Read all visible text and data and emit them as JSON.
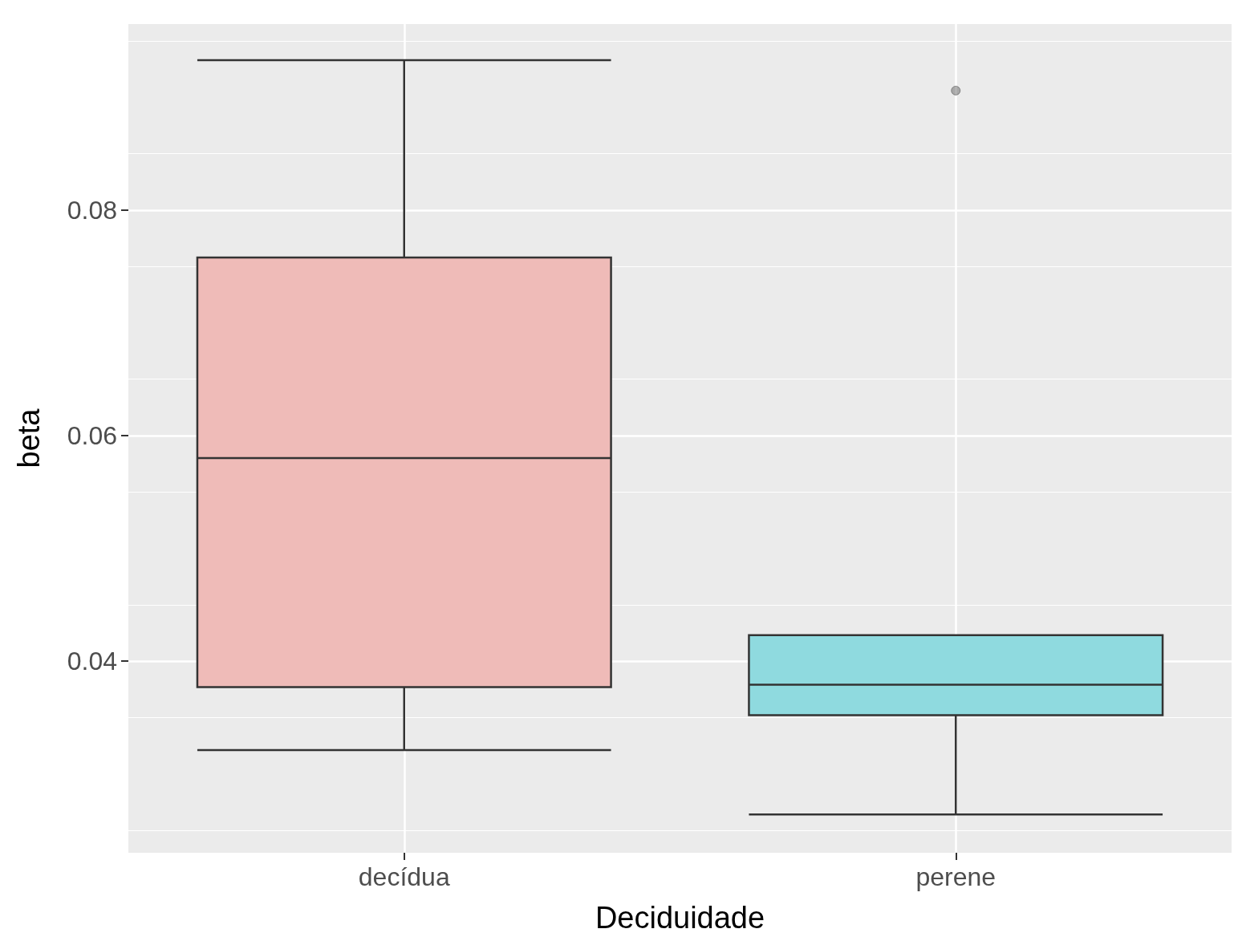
{
  "chart_data": {
    "type": "box",
    "xlabel": "Deciduidade",
    "ylabel": "beta",
    "categories": [
      "decídua",
      "perene"
    ],
    "colors": [
      "#efbbb8",
      "#8fdadf"
    ],
    "boxes": [
      {
        "low": 0.0321,
        "q1": 0.0377,
        "median": 0.058,
        "q3": 0.0758,
        "high": 0.0933
      },
      {
        "low": 0.0264,
        "q1": 0.0352,
        "median": 0.0379,
        "q3": 0.0423,
        "high": 0.0423,
        "outliers": [
          0.0906
        ]
      }
    ],
    "ylim": [
      0.023,
      0.0965
    ],
    "yticks": [
      0.04,
      0.06,
      0.08
    ],
    "grid": true
  }
}
